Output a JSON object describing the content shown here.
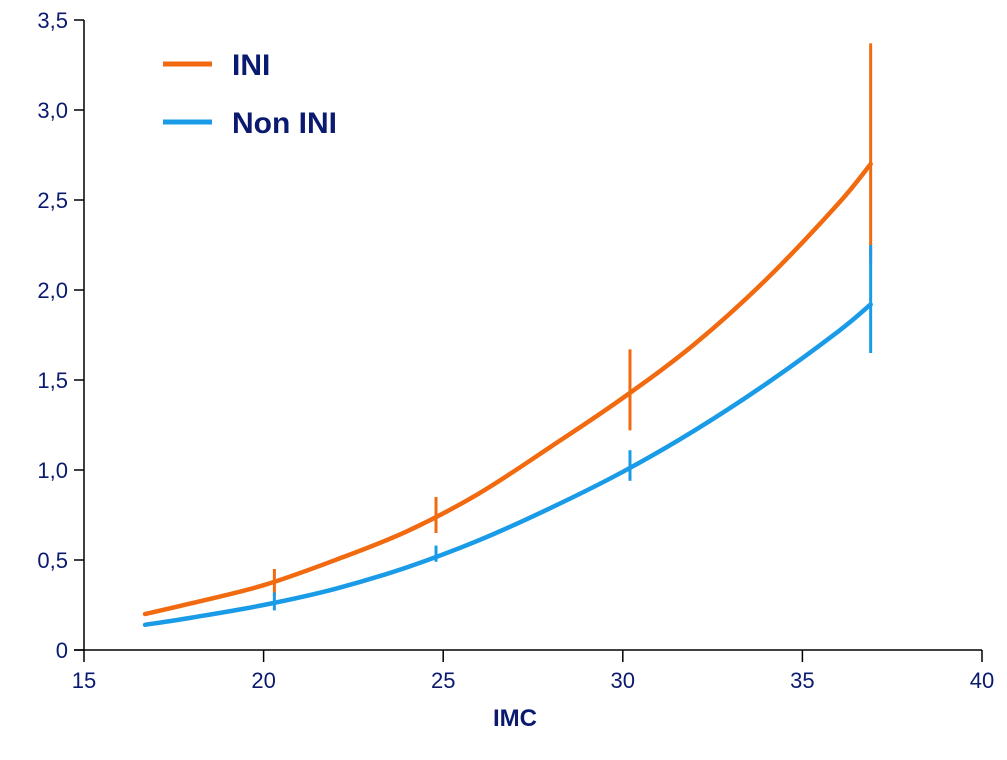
{
  "chart_data": {
    "type": "line",
    "title": "",
    "xlabel": "IMC",
    "ylabel": "",
    "xlim": [
      15,
      40
    ],
    "ylim": [
      0,
      3.5
    ],
    "x_ticks": [
      15,
      20,
      25,
      30,
      35,
      40
    ],
    "x_tick_labels": [
      "15",
      "20",
      "25",
      "30",
      "35",
      "40"
    ],
    "y_ticks": [
      0,
      0.5,
      1.0,
      1.5,
      2.0,
      2.5,
      3.0,
      3.5
    ],
    "y_tick_labels": [
      "0",
      "0,5",
      "1,0",
      "1,5",
      "2,0",
      "2,5",
      "3,0",
      "3,5"
    ],
    "grid": false,
    "legend_position": "top-left",
    "axis_color": "#000000",
    "text_color": "#0a1a6e",
    "series": [
      {
        "name": "INI",
        "color": "#f26a10",
        "x": [
          16.7,
          18,
          20,
          22,
          24,
          26,
          28,
          30,
          32,
          34,
          36,
          36.9
        ],
        "y": [
          0.2,
          0.26,
          0.36,
          0.5,
          0.66,
          0.87,
          1.13,
          1.4,
          1.7,
          2.06,
          2.48,
          2.7
        ],
        "error_bars": [
          {
            "x": 20.3,
            "y": 0.37,
            "low": 0.3,
            "high": 0.45
          },
          {
            "x": 24.8,
            "y": 0.74,
            "low": 0.65,
            "high": 0.85
          },
          {
            "x": 30.2,
            "y": 1.43,
            "low": 1.22,
            "high": 1.67
          },
          {
            "x": 36.9,
            "y": 2.7,
            "low": 2.15,
            "high": 3.37
          }
        ]
      },
      {
        "name": "Non INI",
        "color": "#1a9be8",
        "x": [
          16.7,
          18,
          20,
          22,
          24,
          26,
          28,
          30,
          32,
          34,
          36,
          36.9
        ],
        "y": [
          0.14,
          0.18,
          0.25,
          0.34,
          0.46,
          0.61,
          0.79,
          0.99,
          1.22,
          1.48,
          1.77,
          1.92
        ],
        "error_bars": [
          {
            "x": 20.3,
            "y": 0.26,
            "low": 0.22,
            "high": 0.32
          },
          {
            "x": 24.8,
            "y": 0.53,
            "low": 0.49,
            "high": 0.58
          },
          {
            "x": 30.2,
            "y": 1.02,
            "low": 0.94,
            "high": 1.11
          },
          {
            "x": 36.9,
            "y": 1.92,
            "low": 1.65,
            "high": 2.25
          }
        ]
      }
    ]
  }
}
